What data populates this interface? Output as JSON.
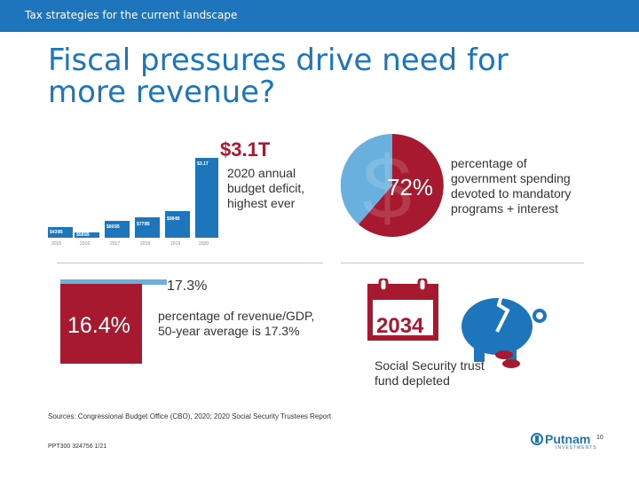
{
  "header": {
    "title": "Tax strategies for the current landscape"
  },
  "slide": {
    "headline": "Fiscal pressures drive need for more revenue?"
  },
  "deficit": {
    "value": "$3.1T",
    "caption": "2020 annual budget deficit, highest ever",
    "chart_data": {
      "type": "bar",
      "categories": [
        "2015",
        "2016",
        "2017",
        "2018",
        "2019",
        "2020"
      ],
      "value_labels": [
        "$439B",
        "$585B",
        "$665B",
        "$779B",
        "$984B",
        "$3.1T"
      ],
      "values": [
        439,
        585,
        665,
        779,
        984,
        3100
      ],
      "title": "",
      "xlabel": "",
      "ylabel": "",
      "ylim": [
        0,
        3100
      ],
      "color": "#1d75bc"
    }
  },
  "mandatory": {
    "value": "72%",
    "caption": "percentage of government spending devoted to mandatory programs + interest",
    "chart_data": {
      "type": "pie",
      "categories": [
        "mandatory programs + interest",
        "other"
      ],
      "values": [
        72,
        28
      ],
      "colors": [
        "#a6192e",
        "#6ab0de"
      ]
    }
  },
  "revenue": {
    "value": "16.4%",
    "average_label": "17.3%",
    "caption": "percentage of revenue/GDP, 50-year average is 17.3%",
    "current_percent": 16.4,
    "average_percent": 17.3
  },
  "social_security": {
    "year": "2034",
    "caption": "Social Security trust fund depleted"
  },
  "footer": {
    "sources": "Sources: Congressional Budget Office (CBO), 2020; 2020 Social Security Trustees Report",
    "code": "PPT300 324756 1/21",
    "logo": "Putnam",
    "logo_sub": "INVESTMENTS",
    "page": "10"
  },
  "colors": {
    "accent": "#1d75bc",
    "red": "#a6192e",
    "light_blue": "#6ab0de"
  }
}
